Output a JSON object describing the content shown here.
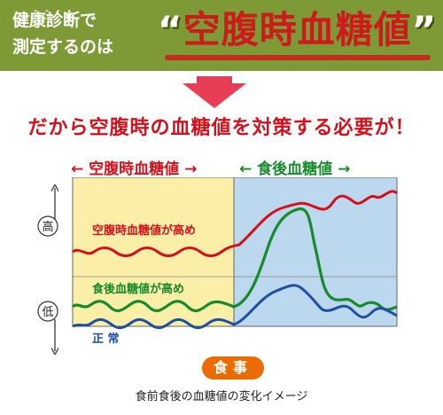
{
  "banner": {
    "left_line1": "健康診断で",
    "left_line2": "測定するのは",
    "quote_open": "“",
    "highlight": "空腹時血糖値",
    "quote_close": "”"
  },
  "headline": "だから空腹時の血糖値を対策する必要が！",
  "legend": {
    "fasting": "← 空腹時血糖値 →",
    "postprandial": "← 食後血糖値 →"
  },
  "axis": {
    "high": "高",
    "low": "低"
  },
  "labels": {
    "fasting_high": "空腹時血糖値が高め",
    "postprandial_high": "食後血糖値が高め",
    "normal": "正 常"
  },
  "meal_button": "食事",
  "caption": "食前食後の血糖値の変化イメージ",
  "colors": {
    "banner_green": "#7e9a36",
    "red": "#d4101b",
    "green": "#178a2c",
    "blue": "#1f4fa3",
    "yellow_panel": "#fbeea6",
    "blue_panel": "#bcd8ef",
    "meal_orange": "#ec6b00"
  },
  "icons": {
    "down_arrow": "down-arrow-icon"
  }
}
